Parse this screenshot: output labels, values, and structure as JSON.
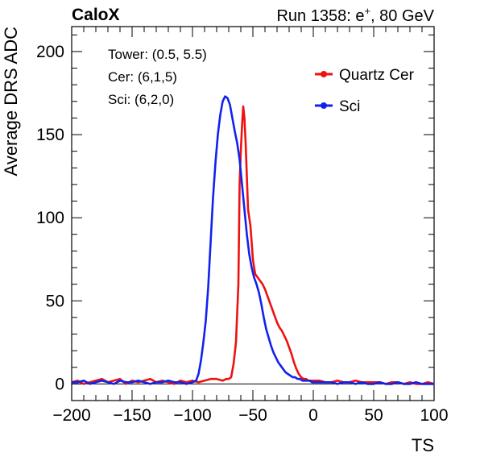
{
  "header": {
    "experiment": "CaloX",
    "run_info_prefix": "Run 1358: e",
    "run_info_sup": "+",
    "run_info_suffix": ", 80 GeV"
  },
  "annotations": {
    "tower": "Tower: (0.5, 5.5)",
    "cer": "Cer: (6,1,5)",
    "sci": "Sci: (6,2,0)"
  },
  "colors": {
    "red": "#ee1111",
    "blue": "#1122ee",
    "frame": "#000000"
  },
  "chart_data": {
    "type": "line",
    "title": "",
    "xlabel": "TS",
    "ylabel": "Average DRS ADC",
    "xlim": [
      -200,
      100
    ],
    "ylim": [
      -10,
      215
    ],
    "xticks": [
      -200,
      -150,
      -100,
      -50,
      0,
      50,
      100
    ],
    "yticks": [
      0,
      50,
      100,
      150,
      200
    ],
    "xtick_labels": [
      "−200",
      "−150",
      "−100",
      "−50",
      "0",
      "50",
      "100"
    ],
    "ytick_labels": [
      "0",
      "50",
      "100",
      "150",
      "200"
    ],
    "legend_position": "top-right",
    "zero_line": true,
    "series": [
      {
        "name": "Quartz Cer",
        "color": "#ee1111",
        "x": [
          -200,
          -195,
          -190,
          -185,
          -180,
          -175,
          -170,
          -165,
          -160,
          -155,
          -150,
          -145,
          -140,
          -135,
          -130,
          -125,
          -120,
          -115,
          -110,
          -105,
          -100,
          -95,
          -90,
          -85,
          -80,
          -75,
          -72,
          -70,
          -68,
          -66,
          -64,
          -62,
          -61,
          -60,
          -59,
          -58,
          -57,
          -56,
          -55,
          -54,
          -53,
          -52,
          -51,
          -50,
          -49,
          -48,
          -46,
          -44,
          -42,
          -40,
          -38,
          -36,
          -34,
          -32,
          -30,
          -28,
          -26,
          -24,
          -22,
          -20,
          -18,
          -16,
          -14,
          -12,
          -10,
          -8,
          -6,
          -4,
          -2,
          0,
          5,
          10,
          15,
          20,
          25,
          30,
          35,
          40,
          45,
          50,
          55,
          60,
          65,
          70,
          75,
          80,
          85,
          90,
          95,
          100
        ],
        "y": [
          1,
          2,
          0,
          1,
          2,
          3,
          1,
          2,
          3,
          0,
          2,
          1,
          2,
          3,
          1,
          2,
          1,
          0,
          2,
          1,
          2,
          1,
          2,
          3,
          3,
          2,
          3,
          3,
          4,
          12,
          25,
          60,
          120,
          140,
          155,
          167,
          160,
          145,
          125,
          105,
          100,
          95,
          85,
          75,
          70,
          66,
          64,
          62,
          60,
          57,
          53,
          49,
          45,
          41,
          37,
          34,
          32,
          29,
          26,
          22,
          18,
          13,
          9,
          6,
          4,
          3,
          3,
          2,
          2,
          2,
          2,
          1,
          1,
          2,
          1,
          1,
          2,
          1,
          1,
          1,
          1,
          0,
          1,
          1,
          0,
          1,
          0,
          0,
          1,
          0
        ]
      },
      {
        "name": "Sci",
        "color": "#1122ee",
        "x": [
          -200,
          -195,
          -190,
          -185,
          -180,
          -175,
          -170,
          -165,
          -160,
          -155,
          -150,
          -145,
          -140,
          -135,
          -130,
          -125,
          -120,
          -115,
          -110,
          -105,
          -100,
          -97,
          -95,
          -93,
          -91,
          -89,
          -87,
          -85,
          -83,
          -81,
          -79,
          -77,
          -75,
          -73,
          -71,
          -69,
          -67,
          -65,
          -63,
          -61,
          -59,
          -57,
          -55,
          -53,
          -51,
          -49,
          -47,
          -45,
          -43,
          -41,
          -39,
          -37,
          -35,
          -33,
          -31,
          -29,
          -27,
          -25,
          -23,
          -21,
          -19,
          -17,
          -15,
          -13,
          -11,
          -9,
          -7,
          -5,
          -3,
          -1,
          0,
          5,
          10,
          15,
          20,
          25,
          30,
          35,
          40,
          45,
          50,
          55,
          60,
          65,
          70,
          75,
          80,
          85,
          90,
          95,
          100
        ],
        "y": [
          1,
          1,
          2,
          0,
          1,
          2,
          1,
          0,
          2,
          1,
          1,
          2,
          1,
          0,
          1,
          1,
          2,
          1,
          1,
          0,
          1,
          2,
          6,
          14,
          25,
          38,
          58,
          85,
          112,
          133,
          150,
          162,
          170,
          173,
          172,
          168,
          160,
          152,
          145,
          135,
          120,
          105,
          90,
          78,
          70,
          64,
          60,
          55,
          48,
          40,
          33,
          28,
          23,
          19,
          16,
          13,
          11,
          9,
          7,
          6,
          5,
          4,
          4,
          3,
          3,
          2,
          2,
          2,
          2,
          1,
          1,
          1,
          1,
          1,
          0,
          1,
          1,
          0,
          1,
          0,
          0,
          1,
          0,
          0,
          1,
          0,
          0,
          1,
          0,
          0,
          0
        ]
      }
    ]
  }
}
